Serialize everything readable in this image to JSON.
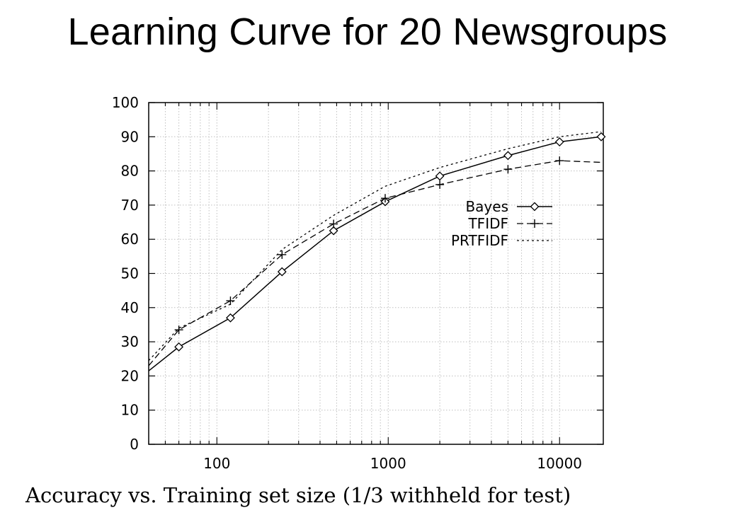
{
  "title": "Learning Curve for 20 Newsgroups",
  "caption": "Accuracy vs. Training set size (1/3 withheld for test)",
  "colors": {
    "ink": "#000000",
    "grid": "#bfbfbf",
    "background": "#ffffff"
  },
  "chart_data": {
    "type": "line",
    "x_scale": "log",
    "xlim": [
      40,
      18000
    ],
    "ylim": [
      0,
      100
    ],
    "xticks": [
      100,
      1000,
      10000
    ],
    "xtick_labels": [
      "100",
      "1000",
      "10000"
    ],
    "yticks": [
      0,
      10,
      20,
      30,
      40,
      50,
      60,
      70,
      80,
      90,
      100
    ],
    "ytick_labels": [
      "0",
      "10",
      "20",
      "30",
      "40",
      "50",
      "60",
      "70",
      "80",
      "90",
      "100"
    ],
    "grid": true,
    "xlabel": "",
    "ylabel": "",
    "legend_position": "center-right",
    "series": [
      {
        "name": "Bayes",
        "style": "solid",
        "marker": "diamond",
        "x": [
          40,
          60,
          120,
          240,
          480,
          960,
          2000,
          5000,
          10000,
          17500
        ],
        "y": [
          21.5,
          28.5,
          37,
          50.5,
          62.5,
          71,
          78.5,
          84.5,
          88.5,
          90
        ],
        "markers_at": [
          60,
          120,
          240,
          480,
          960,
          2000,
          5000,
          10000,
          17500
        ]
      },
      {
        "name": "TFIDF",
        "style": "dashed",
        "marker": "plus",
        "x": [
          40,
          60,
          120,
          240,
          480,
          960,
          2000,
          5000,
          10000,
          17500
        ],
        "y": [
          23,
          33.5,
          42,
          55.5,
          64.5,
          72,
          76,
          80.5,
          83,
          82.5
        ],
        "markers_at": [
          60,
          120,
          240,
          480,
          960,
          2000,
          5000,
          10000
        ]
      },
      {
        "name": "PRTFIDF",
        "style": "dotted",
        "marker": "none",
        "x": [
          40,
          60,
          120,
          240,
          480,
          960,
          2000,
          5000,
          10000,
          17500
        ],
        "y": [
          24.5,
          34,
          41,
          57,
          67,
          75.5,
          81,
          86.5,
          90,
          91.5
        ],
        "markers_at": []
      }
    ]
  }
}
